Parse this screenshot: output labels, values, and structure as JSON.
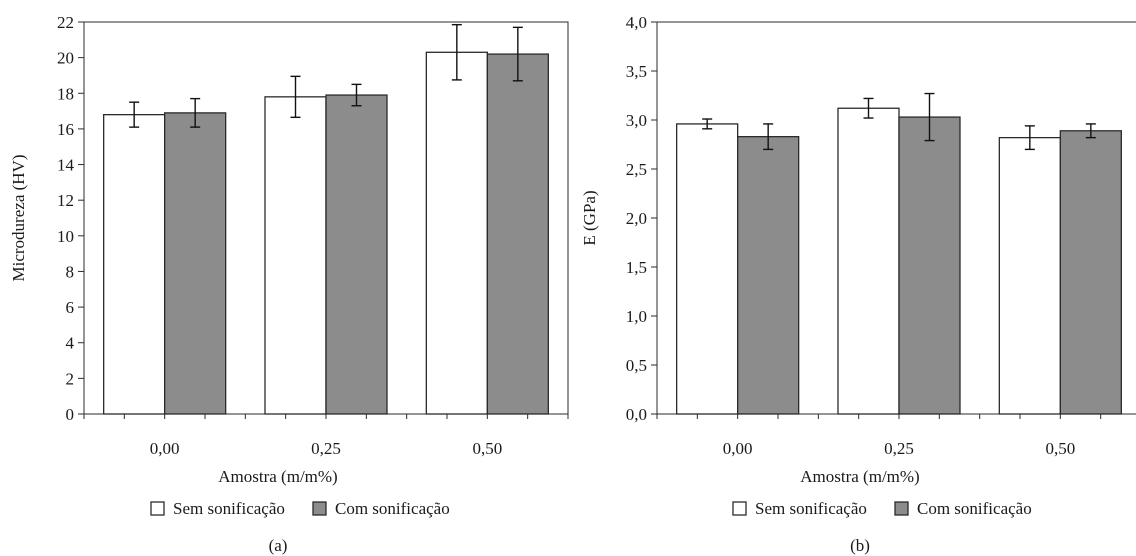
{
  "chart_data": [
    {
      "type": "bar",
      "panel_label": "(a)",
      "xlabel": "Amostra (m/m%)",
      "ylabel": "Microdureza (HV)",
      "categories": [
        "0,00",
        "0,25",
        "0,50"
      ],
      "ylim": [
        0,
        22
      ],
      "yticks": [
        "0",
        "2",
        "4",
        "6",
        "8",
        "10",
        "12",
        "14",
        "16",
        "18",
        "20",
        "22"
      ],
      "grid": false,
      "legend_position": "bottom-center",
      "series": [
        {
          "name": "Sem sonificação",
          "color": "#ffffff",
          "values": [
            16.8,
            17.8,
            20.3
          ],
          "errors": [
            0.7,
            1.15,
            1.55
          ]
        },
        {
          "name": "Com sonificação",
          "color": "#8c8c8c",
          "values": [
            16.9,
            17.9,
            20.2
          ],
          "errors": [
            0.8,
            0.6,
            1.5
          ]
        }
      ]
    },
    {
      "type": "bar",
      "panel_label": "(b)",
      "xlabel": "Amostra (m/m%)",
      "ylabel": "E (GPa)",
      "categories": [
        "0,00",
        "0,25",
        "0,50"
      ],
      "ylim": [
        0,
        4
      ],
      "yticks": [
        "0,0",
        "0,5",
        "1,0",
        "1,5",
        "2,0",
        "2,5",
        "3,0",
        "3,5",
        "4,0"
      ],
      "grid": false,
      "legend_position": "bottom-center",
      "series": [
        {
          "name": "Sem sonificação",
          "color": "#ffffff",
          "values": [
            2.96,
            3.12,
            2.82
          ],
          "errors": [
            0.05,
            0.1,
            0.12
          ]
        },
        {
          "name": "Com sonificação",
          "color": "#8c8c8c",
          "values": [
            2.83,
            3.03,
            2.89
          ],
          "errors": [
            0.13,
            0.24,
            0.07
          ]
        }
      ]
    }
  ]
}
